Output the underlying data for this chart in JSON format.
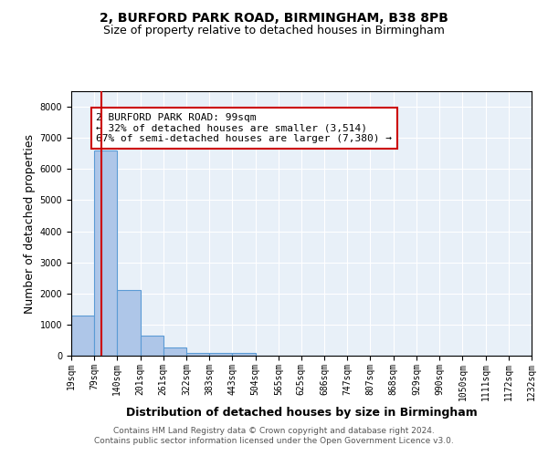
{
  "title_line1": "2, BURFORD PARK ROAD, BIRMINGHAM, B38 8PB",
  "title_line2": "Size of property relative to detached houses in Birmingham",
  "xlabel": "Distribution of detached houses by size in Birmingham",
  "ylabel": "Number of detached properties",
  "bin_edges": [
    19,
    79,
    140,
    201,
    261,
    322,
    383,
    443,
    504,
    565,
    625,
    686,
    747,
    807,
    868,
    929,
    990,
    1050,
    1111,
    1172,
    1232
  ],
  "bar_heights": [
    1300,
    6600,
    2100,
    650,
    250,
    100,
    75,
    75,
    0,
    0,
    0,
    0,
    0,
    0,
    0,
    0,
    0,
    0,
    0,
    0
  ],
  "bar_color": "#aec6e8",
  "bar_edge_color": "#5b9bd5",
  "property_size": 99,
  "red_line_color": "#cc0000",
  "ylim": [
    0,
    8500
  ],
  "yticks": [
    0,
    1000,
    2000,
    3000,
    4000,
    5000,
    6000,
    7000,
    8000
  ],
  "annotation_text": "2 BURFORD PARK ROAD: 99sqm\n← 32% of detached houses are smaller (3,514)\n67% of semi-detached houses are larger (7,380) →",
  "annotation_box_color": "white",
  "annotation_border_color": "#cc0000",
  "footer_line1": "Contains HM Land Registry data © Crown copyright and database right 2024.",
  "footer_line2": "Contains public sector information licensed under the Open Government Licence v3.0.",
  "background_color": "#e8f0f8",
  "grid_color": "white",
  "title_fontsize": 10,
  "subtitle_fontsize": 9,
  "axis_label_fontsize": 9,
  "tick_fontsize": 7,
  "annotation_fontsize": 8,
  "footer_fontsize": 6.5
}
